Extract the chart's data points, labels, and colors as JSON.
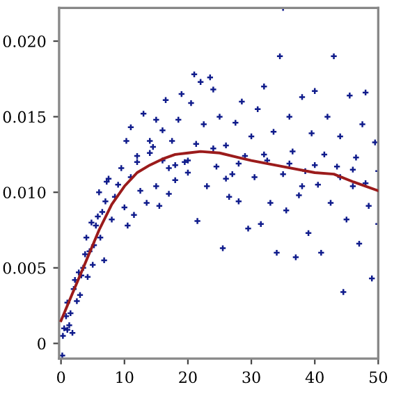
{
  "chart_data": {
    "type": "scatter",
    "marker": "cross",
    "grid": false,
    "legend": false,
    "xlim": [
      -0.3,
      50
    ],
    "xticks": [
      0,
      10,
      20,
      30,
      40,
      50
    ],
    "ylim": [
      -0.001,
      0.0222
    ],
    "yticks": [
      0,
      {
        "value": 0.005,
        "label": "0.005"
      },
      {
        "value": 0.01,
        "label": "0.010"
      },
      {
        "value": 0.015,
        "label": "0.015"
      },
      {
        "value": 0.02,
        "label": "0.020"
      }
    ],
    "series": [
      {
        "color": "#101c8c",
        "x": [
          0.2,
          0.3,
          0.5,
          0.8,
          1,
          1,
          1.3,
          1.5,
          1.8,
          2,
          2.2,
          2.5,
          2.8,
          3,
          3.2,
          3.5,
          3.8,
          4,
          4.2,
          4.5,
          4.8,
          5,
          5.2,
          5.5,
          5.8,
          6,
          6.2,
          6.5,
          6.8,
          7,
          7.2,
          7.5,
          8,
          8.5,
          9,
          9.5,
          10,
          10.3,
          10.5,
          11,
          11,
          11.5,
          12,
          12.5,
          13,
          13.5,
          14,
          14.5,
          15,
          15,
          15.5,
          16,
          16.5,
          17,
          17,
          17.5,
          18,
          18.5,
          19,
          19.5,
          20,
          20.5,
          21,
          21.3,
          21.5,
          22,
          22.5,
          23,
          23.5,
          24,
          24.5,
          25,
          25.5,
          26,
          26.5,
          27,
          27.5,
          28,
          28.5,
          29,
          29.5,
          30,
          30.5,
          31,
          31.5,
          32,
          32.5,
          33,
          33.5,
          34,
          34.5,
          35,
          35,
          35.5,
          36,
          36.5,
          37,
          37.5,
          38,
          38.5,
          39,
          39.5,
          40,
          40.5,
          41,
          41.5,
          42,
          42.5,
          43,
          43.5,
          44,
          44.5,
          45,
          45.5,
          46,
          46.5,
          47,
          47.5,
          48,
          48.5,
          49,
          49.5,
          50,
          50,
          12,
          14,
          16,
          18,
          20,
          24,
          28,
          32,
          36,
          40,
          44,
          48,
          26,
          38,
          46
        ],
        "values": [
          -0.0008,
          0.0005,
          0.001,
          0.0018,
          0.0027,
          0.0009,
          0.0012,
          0.002,
          0.0007,
          0.0036,
          0.0042,
          0.0028,
          0.0047,
          0.0032,
          0.0045,
          0.005,
          0.0059,
          0.007,
          0.0044,
          0.0061,
          0.008,
          0.0052,
          0.0065,
          0.0078,
          0.0084,
          0.01,
          0.007,
          0.0087,
          0.0055,
          0.0094,
          0.0107,
          0.0109,
          0.0082,
          0.0097,
          0.0105,
          0.0116,
          0.009,
          0.0134,
          0.0078,
          0.0143,
          0.011,
          0.0085,
          0.0124,
          0.0101,
          0.0152,
          0.0093,
          0.0134,
          0.013,
          0.0148,
          0.0104,
          0.0091,
          0.0141,
          0.0161,
          0.0116,
          0.0099,
          0.0134,
          0.0108,
          0.0148,
          0.0165,
          0.012,
          0.0113,
          0.0159,
          0.0178,
          0.0132,
          0.0081,
          0.0173,
          0.0145,
          0.0104,
          0.0176,
          0.0168,
          0.0117,
          0.015,
          0.0063,
          0.0131,
          0.0097,
          0.0112,
          0.0146,
          0.0094,
          0.016,
          0.0124,
          0.0076,
          0.0137,
          0.011,
          0.0155,
          0.0079,
          0.017,
          0.0121,
          0.0093,
          0.014,
          0.006,
          0.019,
          0.0222,
          0.0112,
          0.0088,
          0.015,
          0.0127,
          0.0057,
          0.0098,
          0.0163,
          0.0114,
          0.0073,
          0.0139,
          0.0167,
          0.0105,
          0.006,
          0.0125,
          0.015,
          0.0093,
          0.019,
          0.0117,
          0.0137,
          0.0034,
          0.0082,
          0.0164,
          0.0104,
          0.0123,
          0.0066,
          0.0145,
          0.0166,
          0.0091,
          0.0043,
          0.0133,
          0.0114,
          0.0079,
          0.012,
          0.0126,
          0.0121,
          0.0118,
          0.0121,
          0.0129,
          0.0119,
          0.0125,
          0.0119,
          0.0118,
          0.011,
          0.0106,
          0.0109,
          0.0104,
          0.0115
        ]
      },
      {
        "type": "line",
        "color": "#9b1b1b",
        "marker": "none",
        "line_style": "solid",
        "x": [
          0,
          2,
          4,
          6,
          8,
          10,
          12,
          14,
          16,
          18,
          20,
          22,
          25,
          28,
          30,
          35,
          40,
          43,
          46,
          50
        ],
        "values": [
          0.0015,
          0.0035,
          0.0055,
          0.0075,
          0.0092,
          0.0104,
          0.0113,
          0.0118,
          0.0122,
          0.0125,
          0.0126,
          0.0127,
          0.0126,
          0.0123,
          0.0121,
          0.0117,
          0.0113,
          0.0112,
          0.0107,
          0.0101
        ]
      }
    ]
  }
}
